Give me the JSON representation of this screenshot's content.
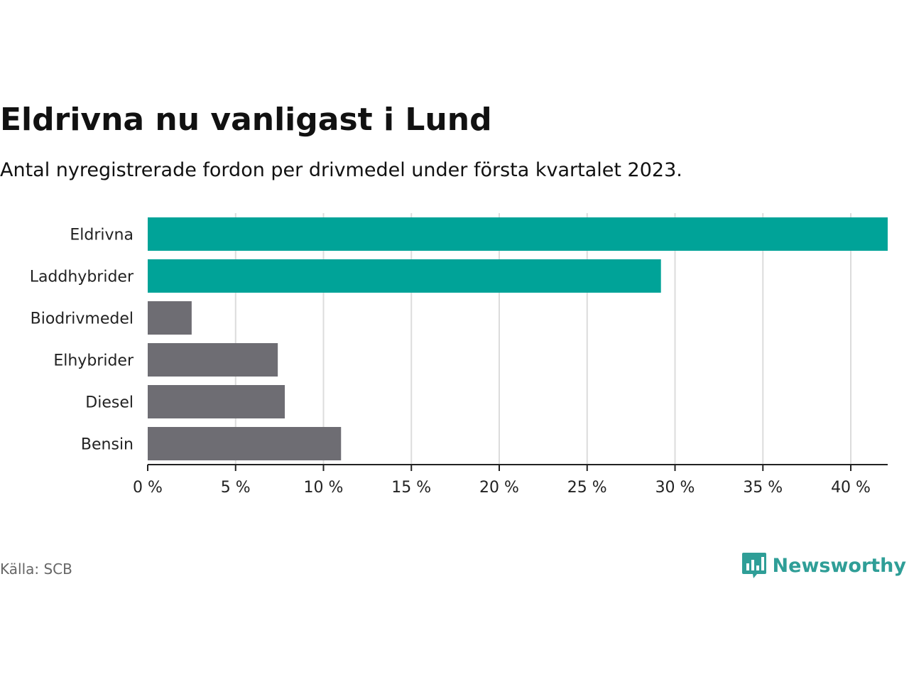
{
  "header": {
    "title": "Eldrivna nu vanligast i Lund",
    "subtitle": "Antal nyregistrerade fordon per drivmedel under första kvartalet 2023."
  },
  "footer": {
    "source": "Källa: SCB",
    "brand": "Newsworthy",
    "brand_icon": "bar-chart-speech-bubble-icon",
    "brand_color": "#2f9e97"
  },
  "chart_data": {
    "type": "bar",
    "orientation": "horizontal",
    "categories": [
      "Eldrivna",
      "Laddhybrider",
      "Biodrivmedel",
      "Elhybrider",
      "Diesel",
      "Bensin"
    ],
    "values": [
      42.1,
      29.2,
      2.5,
      7.4,
      7.8,
      11.0
    ],
    "colors": [
      "#00a398",
      "#00a398",
      "#6e6d73",
      "#6e6d73",
      "#6e6d73",
      "#6e6d73"
    ],
    "xlim": [
      0,
      42.1
    ],
    "xticks": [
      0,
      5,
      10,
      15,
      20,
      25,
      30,
      35,
      40
    ],
    "xtick_labels": [
      "0 %",
      "5 %",
      "10 %",
      "15 %",
      "20 %",
      "25 %",
      "30 %",
      "35 %",
      "40 %"
    ],
    "grid": "vertical"
  }
}
